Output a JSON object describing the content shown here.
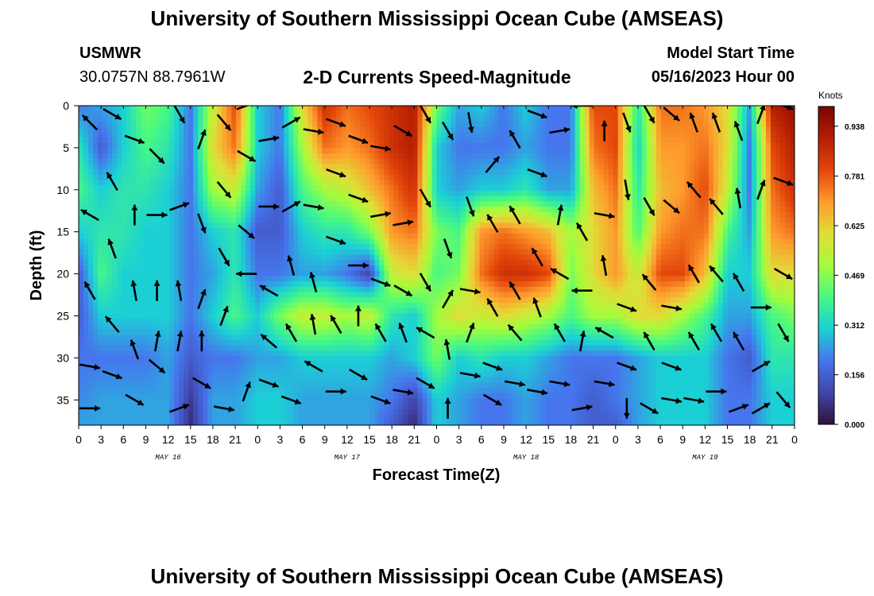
{
  "header": {
    "title": "University of Southern Mississippi Ocean Cube (AMSEAS)",
    "station": "USMWR",
    "coords": "30.0757N  88.7961W",
    "subtitle": "2-D Currents Speed-Magnitude",
    "start_label": "Model Start Time",
    "start_value": "05/16/2023 Hour 00",
    "footer_title": "University of Southern Mississippi Ocean Cube (AMSEAS)"
  },
  "chart_data": {
    "type": "heatmap",
    "title": "2-D Currents Speed-Magnitude",
    "xlabel": "Forecast Time(Z)",
    "ylabel": "Depth (ft)",
    "x_range_hours": [
      0,
      96
    ],
    "y_range_ft": [
      0,
      38
    ],
    "x_tick_labels": [
      "0",
      "3",
      "6",
      "9",
      "12",
      "15",
      "18",
      "21",
      "0",
      "3",
      "6",
      "9",
      "12",
      "15",
      "18",
      "21",
      "0",
      "3",
      "6",
      "9",
      "12",
      "15",
      "18",
      "21",
      "0",
      "3",
      "6",
      "9",
      "12",
      "15",
      "18",
      "21",
      "0"
    ],
    "y_ticks": [
      0,
      5,
      10,
      15,
      20,
      25,
      30,
      35
    ],
    "day_labels": [
      {
        "label": "MAY 16",
        "hour": 12
      },
      {
        "label": "MAY 17",
        "hour": 36
      },
      {
        "label": "MAY 18",
        "hour": 60
      },
      {
        "label": "MAY 19",
        "hour": 84
      }
    ],
    "colorbar": {
      "unit": "Knots",
      "tick_labels": [
        "0.938",
        "0.781",
        "0.625",
        "0.469",
        "0.312",
        "0.156",
        "0.000"
      ],
      "tick_values": [
        0.938,
        0.781,
        0.625,
        0.469,
        0.312,
        0.156,
        0.0
      ],
      "range": [
        0.0,
        1.0
      ]
    },
    "time_hours": [
      0,
      3,
      6,
      9,
      12,
      15,
      18,
      21,
      24,
      27,
      30,
      33,
      36,
      39,
      42,
      45,
      48,
      51,
      54,
      57,
      60,
      63,
      66,
      69,
      72,
      75,
      78,
      81,
      84,
      87,
      90,
      93,
      96
    ],
    "depth_ft": [
      0,
      5,
      10,
      15,
      20,
      25,
      30,
      35,
      38
    ],
    "speed_knots": [
      [
        0.2,
        0.35,
        0.4,
        0.3,
        0.15,
        0.15,
        0.2,
        0.22,
        0.25
      ],
      [
        0.25,
        0.15,
        0.3,
        0.35,
        0.4,
        0.3,
        0.2,
        0.25,
        0.25
      ],
      [
        0.3,
        0.3,
        0.35,
        0.35,
        0.3,
        0.3,
        0.2,
        0.25,
        0.25
      ],
      [
        0.45,
        0.4,
        0.35,
        0.3,
        0.3,
        0.3,
        0.2,
        0.25,
        0.25
      ],
      [
        0.4,
        0.35,
        0.3,
        0.3,
        0.3,
        0.3,
        0.25,
        0.25,
        0.25
      ],
      [
        0.2,
        0.2,
        0.2,
        0.2,
        0.2,
        0.2,
        0.15,
        0.08,
        0.05
      ],
      [
        0.55,
        0.6,
        0.5,
        0.3,
        0.25,
        0.3,
        0.2,
        0.25,
        0.25
      ],
      [
        0.8,
        0.75,
        0.55,
        0.35,
        0.35,
        0.4,
        0.2,
        0.25,
        0.25
      ],
      [
        0.3,
        0.3,
        0.25,
        0.15,
        0.2,
        0.3,
        0.25,
        0.3,
        0.3
      ],
      [
        0.2,
        0.2,
        0.15,
        0.15,
        0.2,
        0.45,
        0.25,
        0.3,
        0.3
      ],
      [
        0.6,
        0.5,
        0.4,
        0.3,
        0.25,
        0.55,
        0.3,
        0.25,
        0.25
      ],
      [
        0.85,
        0.75,
        0.5,
        0.35,
        0.25,
        0.55,
        0.3,
        0.25,
        0.25
      ],
      [
        0.75,
        0.7,
        0.55,
        0.35,
        0.2,
        0.5,
        0.3,
        0.25,
        0.25
      ],
      [
        0.8,
        0.75,
        0.65,
        0.45,
        0.1,
        0.55,
        0.3,
        0.25,
        0.25
      ],
      [
        0.85,
        0.85,
        0.75,
        0.7,
        0.55,
        0.35,
        0.25,
        0.2,
        0.15
      ],
      [
        0.9,
        0.9,
        0.85,
        0.75,
        0.6,
        0.3,
        0.3,
        0.1,
        0.05
      ],
      [
        0.45,
        0.3,
        0.3,
        0.45,
        0.4,
        0.5,
        0.45,
        0.3,
        0.3
      ],
      [
        0.25,
        0.2,
        0.25,
        0.4,
        0.45,
        0.6,
        0.3,
        0.25,
        0.25
      ],
      [
        0.3,
        0.2,
        0.3,
        0.7,
        0.75,
        0.55,
        0.35,
        0.2,
        0.2
      ],
      [
        0.2,
        0.2,
        0.3,
        0.75,
        0.85,
        0.6,
        0.3,
        0.2,
        0.2
      ],
      [
        0.3,
        0.25,
        0.35,
        0.7,
        0.85,
        0.55,
        0.3,
        0.25,
        0.25
      ],
      [
        0.2,
        0.2,
        0.25,
        0.65,
        0.8,
        0.5,
        0.25,
        0.2,
        0.2
      ],
      [
        0.2,
        0.2,
        0.25,
        0.5,
        0.45,
        0.4,
        0.2,
        0.2,
        0.2
      ],
      [
        0.8,
        0.75,
        0.65,
        0.6,
        0.6,
        0.5,
        0.2,
        0.15,
        0.15
      ],
      [
        0.8,
        0.8,
        0.75,
        0.7,
        0.7,
        0.5,
        0.2,
        0.2,
        0.15
      ],
      [
        0.35,
        0.3,
        0.35,
        0.4,
        0.55,
        0.6,
        0.25,
        0.25,
        0.25
      ],
      [
        0.75,
        0.7,
        0.65,
        0.7,
        0.8,
        0.6,
        0.3,
        0.3,
        0.3
      ],
      [
        0.75,
        0.7,
        0.7,
        0.75,
        0.8,
        0.5,
        0.3,
        0.3,
        0.3
      ],
      [
        0.7,
        0.75,
        0.8,
        0.75,
        0.65,
        0.4,
        0.3,
        0.3,
        0.3
      ],
      [
        0.6,
        0.6,
        0.55,
        0.4,
        0.3,
        0.25,
        0.2,
        0.2,
        0.2
      ],
      [
        0.25,
        0.2,
        0.2,
        0.25,
        0.3,
        0.25,
        0.15,
        0.2,
        0.2
      ],
      [
        0.9,
        0.8,
        0.75,
        0.7,
        0.6,
        0.4,
        0.35,
        0.3,
        0.3
      ],
      [
        0.95,
        0.9,
        0.85,
        0.75,
        0.6,
        0.45,
        0.35,
        0.3,
        0.3
      ]
    ],
    "vectors": [
      {
        "t": 1.5,
        "d": 2,
        "dir": 315
      },
      {
        "t": 1.5,
        "d": 13,
        "dir": 300
      },
      {
        "t": 1.5,
        "d": 22,
        "dir": 330
      },
      {
        "t": 1.5,
        "d": 31,
        "dir": 100
      },
      {
        "t": 1.5,
        "d": 36,
        "dir": 90
      },
      {
        "t": 4.5,
        "d": 1,
        "dir": 120
      },
      {
        "t": 4.5,
        "d": 9,
        "dir": 330
      },
      {
        "t": 4.5,
        "d": 17,
        "dir": 340
      },
      {
        "t": 4.5,
        "d": 26,
        "dir": 320
      },
      {
        "t": 4.5,
        "d": 32,
        "dir": 110
      },
      {
        "t": 7.5,
        "d": 4,
        "dir": 110
      },
      {
        "t": 7.5,
        "d": 13,
        "dir": 0
      },
      {
        "t": 7.5,
        "d": 22,
        "dir": 350
      },
      {
        "t": 7.5,
        "d": 29,
        "dir": 340
      },
      {
        "t": 7.5,
        "d": 35,
        "dir": 120
      },
      {
        "t": 10.5,
        "d": 6,
        "dir": 135
      },
      {
        "t": 10.5,
        "d": 13,
        "dir": 90
      },
      {
        "t": 10.5,
        "d": 22,
        "dir": 0
      },
      {
        "t": 10.5,
        "d": 28,
        "dir": 10
      },
      {
        "t": 10.5,
        "d": 31,
        "dir": 130
      },
      {
        "t": 13.5,
        "d": 1,
        "dir": 150
      },
      {
        "t": 13.5,
        "d": 12,
        "dir": 70
      },
      {
        "t": 13.5,
        "d": 22,
        "dir": 350
      },
      {
        "t": 13.5,
        "d": 28,
        "dir": 10
      },
      {
        "t": 13.5,
        "d": 36,
        "dir": 70
      },
      {
        "t": 16.5,
        "d": 4,
        "dir": 20
      },
      {
        "t": 16.5,
        "d": 14,
        "dir": 160
      },
      {
        "t": 16.5,
        "d": 23,
        "dir": 20
      },
      {
        "t": 16.5,
        "d": 28,
        "dir": 0
      },
      {
        "t": 16.5,
        "d": 33,
        "dir": 120
      },
      {
        "t": 19.5,
        "d": 2,
        "dir": 140
      },
      {
        "t": 19.5,
        "d": 10,
        "dir": 140
      },
      {
        "t": 19.5,
        "d": 18,
        "dir": 150
      },
      {
        "t": 19.5,
        "d": 25,
        "dir": 20
      },
      {
        "t": 19.5,
        "d": 36,
        "dir": 100
      },
      {
        "t": 22.5,
        "d": 0,
        "dir": 70
      },
      {
        "t": 22.5,
        "d": 6,
        "dir": 120
      },
      {
        "t": 22.5,
        "d": 15,
        "dir": 130
      },
      {
        "t": 22.5,
        "d": 20,
        "dir": 270
      },
      {
        "t": 22.5,
        "d": 34,
        "dir": 20
      },
      {
        "t": 25.5,
        "d": 4,
        "dir": 80
      },
      {
        "t": 25.5,
        "d": 12,
        "dir": 90
      },
      {
        "t": 25.5,
        "d": 22,
        "dir": 300
      },
      {
        "t": 25.5,
        "d": 28,
        "dir": 310
      },
      {
        "t": 25.5,
        "d": 33,
        "dir": 110
      },
      {
        "t": 28.5,
        "d": 2,
        "dir": 60
      },
      {
        "t": 28.5,
        "d": 12,
        "dir": 60
      },
      {
        "t": 28.5,
        "d": 19,
        "dir": 345
      },
      {
        "t": 28.5,
        "d": 27,
        "dir": 330
      },
      {
        "t": 28.5,
        "d": 35,
        "dir": 110
      },
      {
        "t": 31.5,
        "d": 3,
        "dir": 100
      },
      {
        "t": 31.5,
        "d": 12,
        "dir": 100
      },
      {
        "t": 31.5,
        "d": 21,
        "dir": 345
      },
      {
        "t": 31.5,
        "d": 26,
        "dir": 350
      },
      {
        "t": 31.5,
        "d": 31,
        "dir": 300
      },
      {
        "t": 34.5,
        "d": 2,
        "dir": 110
      },
      {
        "t": 34.5,
        "d": 8,
        "dir": 110
      },
      {
        "t": 34.5,
        "d": 16,
        "dir": 110
      },
      {
        "t": 34.5,
        "d": 26,
        "dir": 330
      },
      {
        "t": 34.5,
        "d": 34,
        "dir": 90
      },
      {
        "t": 37.5,
        "d": 4,
        "dir": 110
      },
      {
        "t": 37.5,
        "d": 11,
        "dir": 110
      },
      {
        "t": 37.5,
        "d": 19,
        "dir": 90
      },
      {
        "t": 37.5,
        "d": 25,
        "dir": 0
      },
      {
        "t": 37.5,
        "d": 32,
        "dir": 120
      },
      {
        "t": 40.5,
        "d": 5,
        "dir": 100
      },
      {
        "t": 40.5,
        "d": 13,
        "dir": 80
      },
      {
        "t": 40.5,
        "d": 21,
        "dir": 110
      },
      {
        "t": 40.5,
        "d": 27,
        "dir": 330
      },
      {
        "t": 40.5,
        "d": 35,
        "dir": 110
      },
      {
        "t": 43.5,
        "d": 3,
        "dir": 120
      },
      {
        "t": 43.5,
        "d": 14,
        "dir": 80
      },
      {
        "t": 43.5,
        "d": 22,
        "dir": 120
      },
      {
        "t": 43.5,
        "d": 27,
        "dir": 340
      },
      {
        "t": 43.5,
        "d": 34,
        "dir": 100
      },
      {
        "t": 46.5,
        "d": 1,
        "dir": 150
      },
      {
        "t": 46.5,
        "d": 11,
        "dir": 150
      },
      {
        "t": 46.5,
        "d": 21,
        "dir": 150
      },
      {
        "t": 46.5,
        "d": 27,
        "dir": 300
      },
      {
        "t": 46.5,
        "d": 33,
        "dir": 120
      },
      {
        "t": 49.5,
        "d": 3,
        "dir": 150
      },
      {
        "t": 49.5,
        "d": 17,
        "dir": 160
      },
      {
        "t": 49.5,
        "d": 23,
        "dir": 30
      },
      {
        "t": 49.5,
        "d": 29,
        "dir": 350
      },
      {
        "t": 49.5,
        "d": 36,
        "dir": 0
      },
      {
        "t": 52.5,
        "d": 2,
        "dir": 170
      },
      {
        "t": 52.5,
        "d": 12,
        "dir": 160
      },
      {
        "t": 52.5,
        "d": 22,
        "dir": 100
      },
      {
        "t": 52.5,
        "d": 27,
        "dir": 20
      },
      {
        "t": 52.5,
        "d": 32,
        "dir": 100
      },
      {
        "t": 55.5,
        "d": 7,
        "dir": 40
      },
      {
        "t": 55.5,
        "d": 14,
        "dir": 330
      },
      {
        "t": 55.5,
        "d": 24,
        "dir": 330
      },
      {
        "t": 55.5,
        "d": 31,
        "dir": 110
      },
      {
        "t": 55.5,
        "d": 35,
        "dir": 120
      },
      {
        "t": 58.5,
        "d": 4,
        "dir": 330
      },
      {
        "t": 58.5,
        "d": 13,
        "dir": 330
      },
      {
        "t": 58.5,
        "d": 22,
        "dir": 330
      },
      {
        "t": 58.5,
        "d": 27,
        "dir": 320
      },
      {
        "t": 58.5,
        "d": 33,
        "dir": 100
      },
      {
        "t": 61.5,
        "d": 1,
        "dir": 110
      },
      {
        "t": 61.5,
        "d": 8,
        "dir": 110
      },
      {
        "t": 61.5,
        "d": 18,
        "dir": 330
      },
      {
        "t": 61.5,
        "d": 24,
        "dir": 340
      },
      {
        "t": 61.5,
        "d": 34,
        "dir": 100
      },
      {
        "t": 64.5,
        "d": 3,
        "dir": 80
      },
      {
        "t": 64.5,
        "d": 13,
        "dir": 10
      },
      {
        "t": 64.5,
        "d": 20,
        "dir": 300
      },
      {
        "t": 64.5,
        "d": 27,
        "dir": 330
      },
      {
        "t": 64.5,
        "d": 33,
        "dir": 100
      },
      {
        "t": 67.5,
        "d": 0,
        "dir": 270
      },
      {
        "t": 67.5,
        "d": 15,
        "dir": 330
      },
      {
        "t": 67.5,
        "d": 22,
        "dir": 270
      },
      {
        "t": 67.5,
        "d": 28,
        "dir": 10
      },
      {
        "t": 67.5,
        "d": 36,
        "dir": 80
      },
      {
        "t": 70.5,
        "d": 3,
        "dir": 0
      },
      {
        "t": 70.5,
        "d": 13,
        "dir": 100
      },
      {
        "t": 70.5,
        "d": 19,
        "dir": 350
      },
      {
        "t": 70.5,
        "d": 27,
        "dir": 300
      },
      {
        "t": 70.5,
        "d": 33,
        "dir": 100
      },
      {
        "t": 73.5,
        "d": 2,
        "dir": 160
      },
      {
        "t": 73.5,
        "d": 10,
        "dir": 170
      },
      {
        "t": 73.5,
        "d": 24,
        "dir": 110
      },
      {
        "t": 73.5,
        "d": 31,
        "dir": 110
      },
      {
        "t": 73.5,
        "d": 36,
        "dir": 180
      },
      {
        "t": 76.5,
        "d": 1,
        "dir": 150
      },
      {
        "t": 76.5,
        "d": 12,
        "dir": 150
      },
      {
        "t": 76.5,
        "d": 21,
        "dir": 320
      },
      {
        "t": 76.5,
        "d": 28,
        "dir": 330
      },
      {
        "t": 76.5,
        "d": 36,
        "dir": 120
      },
      {
        "t": 79.5,
        "d": 1,
        "dir": 130
      },
      {
        "t": 79.5,
        "d": 12,
        "dir": 130
      },
      {
        "t": 79.5,
        "d": 24,
        "dir": 100
      },
      {
        "t": 79.5,
        "d": 31,
        "dir": 110
      },
      {
        "t": 79.5,
        "d": 35,
        "dir": 100
      },
      {
        "t": 82.5,
        "d": 2,
        "dir": 340
      },
      {
        "t": 82.5,
        "d": 10,
        "dir": 320
      },
      {
        "t": 82.5,
        "d": 20,
        "dir": 330
      },
      {
        "t": 82.5,
        "d": 28,
        "dir": 330
      },
      {
        "t": 82.5,
        "d": 35,
        "dir": 100
      },
      {
        "t": 85.5,
        "d": 2,
        "dir": 340
      },
      {
        "t": 85.5,
        "d": 12,
        "dir": 320
      },
      {
        "t": 85.5,
        "d": 20,
        "dir": 320
      },
      {
        "t": 85.5,
        "d": 27,
        "dir": 330
      },
      {
        "t": 85.5,
        "d": 34,
        "dir": 90
      },
      {
        "t": 88.5,
        "d": 3,
        "dir": 340
      },
      {
        "t": 88.5,
        "d": 11,
        "dir": 350
      },
      {
        "t": 88.5,
        "d": 21,
        "dir": 330
      },
      {
        "t": 88.5,
        "d": 28,
        "dir": 330
      },
      {
        "t": 88.5,
        "d": 36,
        "dir": 70
      },
      {
        "t": 91.5,
        "d": 1,
        "dir": 20
      },
      {
        "t": 91.5,
        "d": 10,
        "dir": 20
      },
      {
        "t": 91.5,
        "d": 24,
        "dir": 90
      },
      {
        "t": 91.5,
        "d": 31,
        "dir": 60
      },
      {
        "t": 91.5,
        "d": 36,
        "dir": 60
      },
      {
        "t": 94.5,
        "d": 0,
        "dir": 110
      },
      {
        "t": 94.5,
        "d": 9,
        "dir": 110
      },
      {
        "t": 94.5,
        "d": 20,
        "dir": 120
      },
      {
        "t": 94.5,
        "d": 27,
        "dir": 150
      },
      {
        "t": 94.5,
        "d": 35,
        "dir": 140
      }
    ]
  }
}
